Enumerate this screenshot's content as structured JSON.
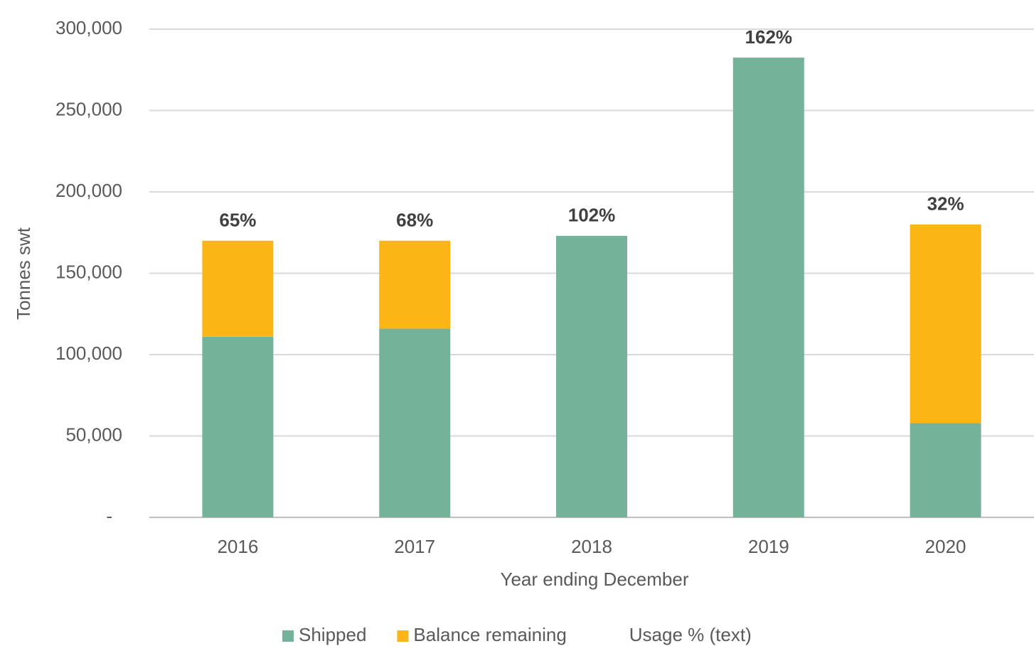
{
  "chart_data": {
    "type": "stacked_bar",
    "x_label": "Year ending December",
    "y_label": "Tonnes swt",
    "categories": [
      "2016",
      "2017",
      "2018",
      "2019",
      "2020"
    ],
    "series": [
      {
        "name": "Shipped",
        "color": "#74b39a",
        "values": [
          111000,
          116000,
          173000,
          282500,
          58000
        ]
      },
      {
        "name": "Balance remaining",
        "color": "#fbb616",
        "values": [
          59000,
          54000,
          0,
          0,
          122000
        ]
      },
      {
        "name": "Usage % (text)",
        "values": [
          65,
          68,
          102,
          162,
          32
        ],
        "value_labels": [
          "65%",
          "68%",
          "102%",
          "162%",
          "32%"
        ]
      }
    ],
    "ylim": [
      0,
      300000
    ],
    "yticks": [
      {
        "value": 0,
        "label": "-"
      },
      {
        "value": 50000,
        "label": "50,000"
      },
      {
        "value": 100000,
        "label": "100,000"
      },
      {
        "value": 150000,
        "label": "150,000"
      },
      {
        "value": 200000,
        "label": "200,000"
      },
      {
        "value": 250000,
        "label": "250,000"
      },
      {
        "value": 300000,
        "label": "300,000"
      }
    ],
    "grid": true,
    "legend": "bottom"
  }
}
